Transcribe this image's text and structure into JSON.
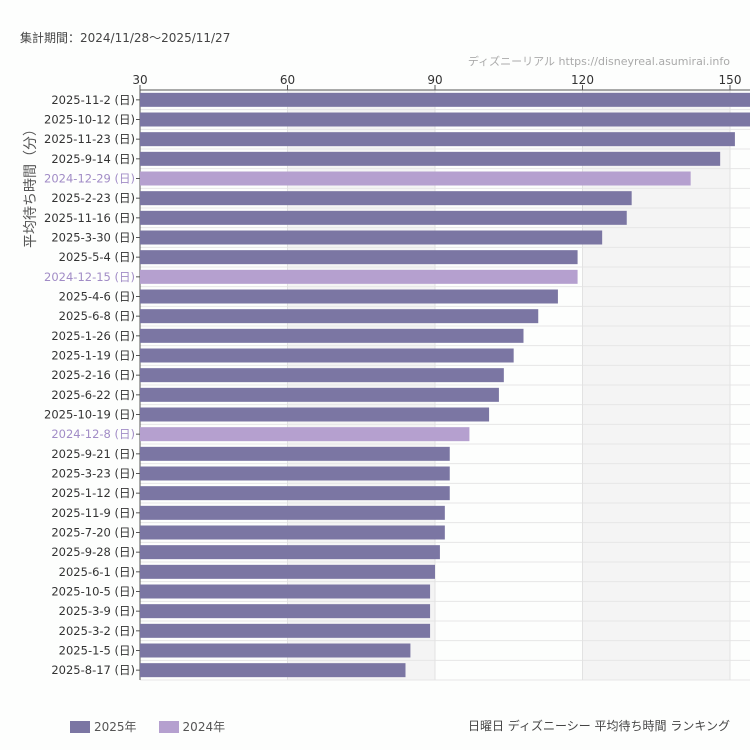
{
  "header": {
    "period": "集計期間：2024/11/28〜2025/11/27",
    "credit": "ディズニーリアル https://disneyreal.asumirai.info"
  },
  "footer": {
    "title": "日曜日 ディズニーシー 平均待ち時間 ランキング"
  },
  "colors": {
    "2025": "#7b76a3",
    "2024": "#b5a0cf",
    "label2024": "#a18cc6"
  },
  "chart_data": {
    "type": "bar",
    "orientation": "horizontal",
    "title": "日曜日 ディズニーシー 平均待ち時間 ランキング",
    "xlabel": "",
    "ylabel": "平均待ち時間（分）",
    "xlim": [
      30,
      150
    ],
    "xticks": [
      30,
      60,
      90,
      120,
      150
    ],
    "legend": [
      {
        "name": "2025年",
        "key": "2025"
      },
      {
        "name": "2024年",
        "key": "2024"
      }
    ],
    "legend_position": "bottom-left",
    "categories": [
      "2025-11-2 (日)",
      "2025-10-12 (日)",
      "2025-11-23 (日)",
      "2025-9-14 (日)",
      "2024-12-29 (日)",
      "2025-2-23 (日)",
      "2025-11-16 (日)",
      "2025-3-30 (日)",
      "2025-5-4 (日)",
      "2024-12-15 (日)",
      "2025-4-6 (日)",
      "2025-6-8 (日)",
      "2025-1-26 (日)",
      "2025-1-19 (日)",
      "2025-2-16 (日)",
      "2025-6-22 (日)",
      "2025-10-19 (日)",
      "2024-12-8 (日)",
      "2025-9-21 (日)",
      "2025-3-23 (日)",
      "2025-1-12 (日)",
      "2025-11-9 (日)",
      "2025-7-20 (日)",
      "2025-9-28 (日)",
      "2025-6-1 (日)",
      "2025-10-5 (日)",
      "2025-3-9 (日)",
      "2025-3-2 (日)",
      "2025-1-5 (日)",
      "2025-8-17 (日)"
    ],
    "values": [
      156,
      155,
      151,
      148,
      142,
      130,
      129,
      124,
      119,
      119,
      115,
      111,
      108,
      106,
      104,
      103,
      101,
      97,
      93,
      93,
      93,
      92,
      92,
      91,
      90,
      89,
      89,
      89,
      85,
      84
    ],
    "series_key": [
      "2025",
      "2025",
      "2025",
      "2025",
      "2024",
      "2025",
      "2025",
      "2025",
      "2025",
      "2024",
      "2025",
      "2025",
      "2025",
      "2025",
      "2025",
      "2025",
      "2025",
      "2024",
      "2025",
      "2025",
      "2025",
      "2025",
      "2025",
      "2025",
      "2025",
      "2025",
      "2025",
      "2025",
      "2025",
      "2025"
    ]
  }
}
